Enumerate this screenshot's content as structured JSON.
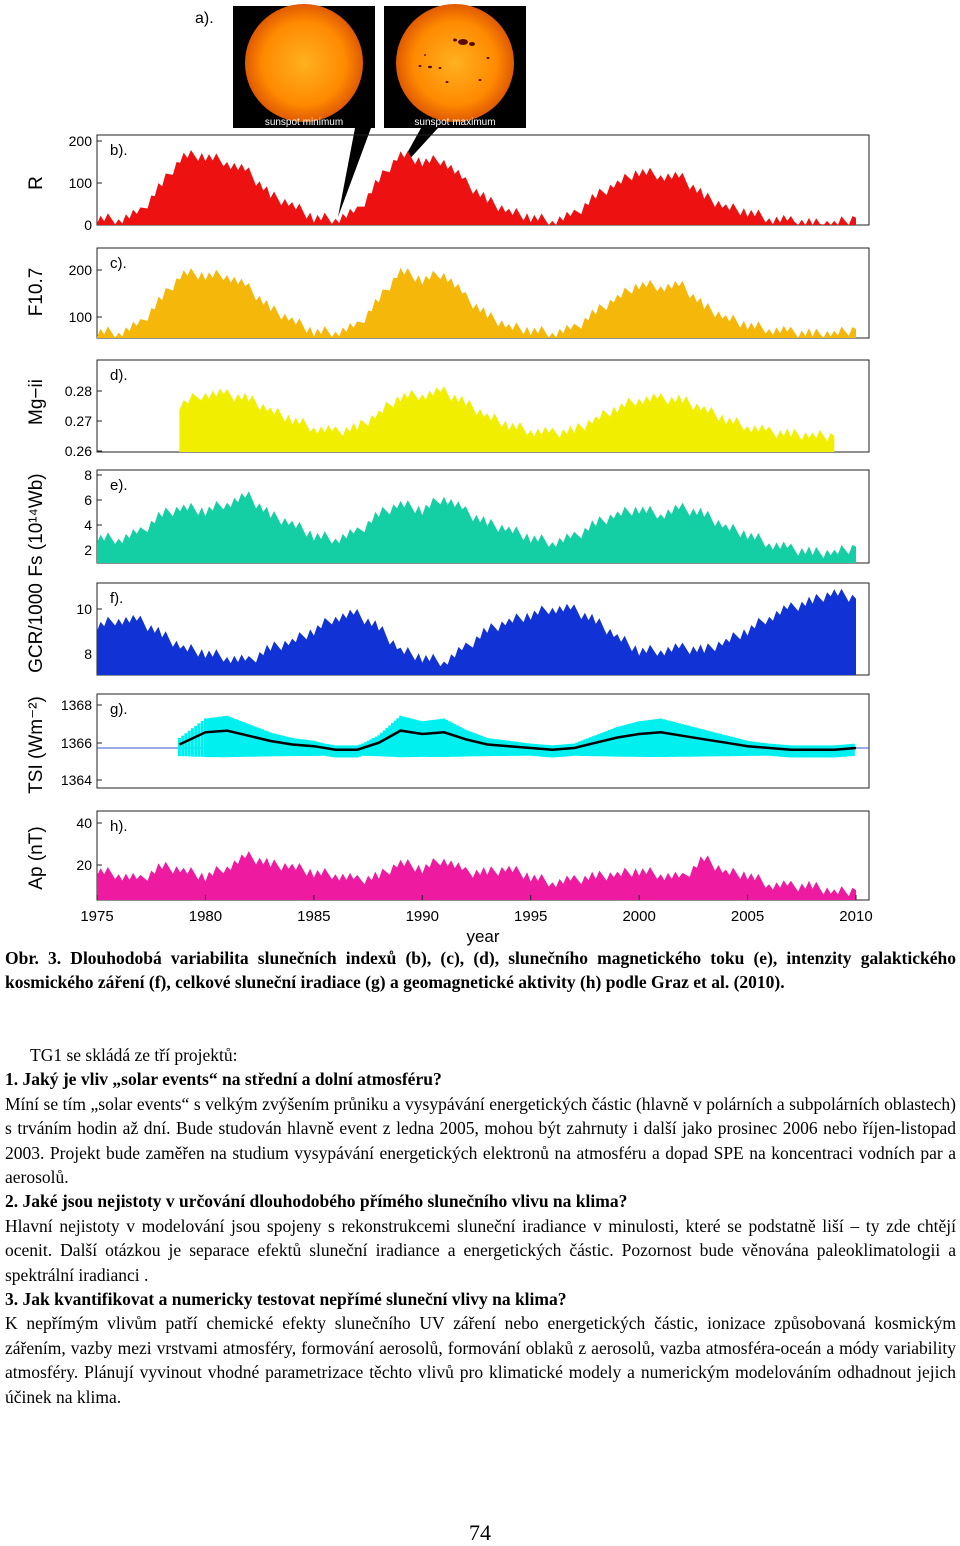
{
  "figure": {
    "panel_tags": [
      "a).",
      "b).",
      "c).",
      "d).",
      "e).",
      "f).",
      "g).",
      "h)."
    ],
    "sun_labels": {
      "minimum": "sunspot minimum",
      "maximum": "sunspot maximum"
    },
    "xlabel": "year",
    "xticks": [
      "1975",
      "1980",
      "1985",
      "1990",
      "1995",
      "2000",
      "2005",
      "2010"
    ],
    "colors": {
      "R": "#ee1111",
      "F10.7": "#f5b80a",
      "Mg-ii": "#f2ee00",
      "Fs": "#14cfa4",
      "GCR": "#1133d5",
      "TSI_daily": "#00f0f0",
      "TSI_smooth": "#000000",
      "Ap": "#ee1aa0"
    }
  },
  "chart_data": [
    {
      "type": "area",
      "panel": "b",
      "ylabel": "R",
      "yticks": [
        "200",
        "100",
        "0"
      ],
      "ylim": [
        0,
        200
      ],
      "x": [
        1975,
        1976,
        1977,
        1978,
        1979,
        1980,
        1981,
        1982,
        1983,
        1984,
        1985,
        1986,
        1987,
        1988,
        1989,
        1990,
        1991,
        1992,
        1993,
        1994,
        1995,
        1996,
        1997,
        1998,
        1999,
        2000,
        2001,
        2002,
        2003,
        2004,
        2005,
        2006,
        2007,
        2008,
        2009,
        2010
      ],
      "values": [
        15,
        13,
        27,
        92,
        155,
        154,
        140,
        116,
        66,
        45,
        17,
        14,
        29,
        100,
        158,
        142,
        145,
        94,
        55,
        30,
        18,
        9,
        22,
        64,
        93,
        120,
        111,
        104,
        64,
        40,
        30,
        15,
        8,
        3,
        3,
        16
      ]
    },
    {
      "type": "area",
      "panel": "c",
      "ylabel": "F10.7",
      "yticks": [
        "200",
        "100"
      ],
      "ylim": [
        60,
        260
      ],
      "x": [
        1975,
        1976,
        1977,
        1978,
        1979,
        1980,
        1981,
        1982,
        1983,
        1984,
        1985,
        1986,
        1987,
        1988,
        1989,
        1990,
        1991,
        1992,
        1993,
        1994,
        1995,
        1996,
        1997,
        1998,
        1999,
        2000,
        2001,
        2002,
        2003,
        2004,
        2005,
        2006,
        2007,
        2008,
        2009,
        2010
      ],
      "values": [
        75,
        72,
        90,
        150,
        205,
        200,
        200,
        170,
        125,
        100,
        75,
        74,
        85,
        145,
        210,
        190,
        205,
        150,
        110,
        85,
        78,
        72,
        80,
        118,
        150,
        180,
        175,
        175,
        130,
        105,
        90,
        80,
        73,
        69,
        70,
        80
      ]
    },
    {
      "type": "area",
      "panel": "d",
      "ylabel": "Mg−ii",
      "yticks": [
        "0.28",
        "0.27",
        "0.26"
      ],
      "ylim": [
        0.258,
        0.29
      ],
      "x": [
        1978.8,
        1980,
        1981,
        1982,
        1983,
        1984,
        1985,
        1986,
        1987,
        1988,
        1989,
        1990,
        1991,
        1992,
        1993,
        1994,
        1995,
        1996,
        1997,
        1998,
        1999,
        2000,
        2001,
        2002,
        2003,
        2004,
        2005,
        2006,
        2007,
        2008,
        2009
      ],
      "values": [
        0.2745,
        0.2785,
        0.278,
        0.2765,
        0.2725,
        0.2695,
        0.2665,
        0.265,
        0.2665,
        0.2715,
        0.2775,
        0.278,
        0.279,
        0.275,
        0.2705,
        0.2675,
        0.2655,
        0.2645,
        0.2655,
        0.2695,
        0.2735,
        0.2765,
        0.2765,
        0.276,
        0.273,
        0.2695,
        0.267,
        0.265,
        0.2642,
        0.2638,
        0.2636
      ]
    },
    {
      "type": "area",
      "panel": "e",
      "ylabel": "Fs (10¹⁴Wb)",
      "yticks": [
        "8",
        "6",
        "4",
        "2"
      ],
      "ylim": [
        1,
        9
      ],
      "x": [
        1975,
        1976,
        1977,
        1978,
        1979,
        1980,
        1981,
        1982,
        1983,
        1984,
        1985,
        1986,
        1987,
        1988,
        1989,
        1990,
        1991,
        1992,
        1993,
        1994,
        1995,
        1996,
        1997,
        1998,
        1999,
        2000,
        2001,
        2002,
        2003,
        2004,
        2005,
        2006,
        2007,
        2008,
        2009,
        2010
      ],
      "values": [
        3.2,
        3.1,
        3.6,
        5.2,
        5.8,
        5.5,
        6.2,
        6.7,
        5.1,
        4.4,
        3.4,
        3.1,
        3.6,
        5.2,
        6.1,
        5.6,
        6.7,
        5.4,
        4.4,
        3.9,
        3.2,
        2.8,
        3.2,
        4.4,
        5.2,
        5.7,
        5.2,
        5.7,
        5.2,
        4.1,
        3.5,
        2.7,
        2.2,
        1.9,
        1.9,
        2.4
      ]
    },
    {
      "type": "area",
      "panel": "f",
      "ylabel": "GCR/1000",
      "yticks": [
        "10",
        "8"
      ],
      "ylim": [
        7.2,
        11.3
      ],
      "x": [
        1975,
        1976,
        1977,
        1978,
        1979,
        1980,
        1981,
        1982,
        1983,
        1984,
        1985,
        1986,
        1987,
        1988,
        1989,
        1990,
        1991,
        1992,
        1993,
        1994,
        1995,
        1996,
        1997,
        1998,
        1999,
        2000,
        2001,
        2002,
        2003,
        2004,
        2005,
        2006,
        2007,
        2008,
        2009,
        2010
      ],
      "values": [
        9.4,
        9.7,
        9.6,
        9.0,
        8.4,
        8.2,
        8.0,
        7.8,
        8.4,
        8.7,
        9.2,
        9.8,
        9.9,
        9.3,
        8.3,
        8.0,
        7.8,
        8.4,
        9.2,
        9.6,
        9.9,
        10.2,
        10.1,
        9.6,
        8.9,
        8.3,
        8.3,
        8.4,
        8.3,
        8.7,
        9.2,
        9.8,
        10.2,
        10.5,
        10.9,
        10.6
      ]
    },
    {
      "type": "line",
      "panel": "g",
      "ylabel": "TSI (Wm⁻²)",
      "yticks": [
        "1368",
        "1366",
        "1364"
      ],
      "ylim": [
        1363.2,
        1368.6
      ],
      "baseline": 1365.5,
      "x": [
        1978.8,
        1980,
        1981,
        1982,
        1983,
        1984,
        1985,
        1986,
        1987,
        1988,
        1989,
        1990,
        1991,
        1992,
        1993,
        1994,
        1995,
        1996,
        1997,
        1998,
        1999,
        2000,
        2001,
        2002,
        2003,
        2004,
        2005,
        2006,
        2007,
        2008,
        2009,
        2010
      ],
      "series": [
        {
          "values": [
            1365.7,
            1366.4,
            1366.5,
            1366.2,
            1365.9,
            1365.7,
            1365.6,
            1365.4,
            1365.4,
            1365.8,
            1366.5,
            1366.3,
            1366.4,
            1366.0,
            1365.7,
            1365.6,
            1365.5,
            1365.4,
            1365.5,
            1365.8,
            1366.1,
            1366.3,
            1366.4,
            1366.2,
            1366.0,
            1365.8,
            1365.6,
            1365.5,
            1365.4,
            1365.4,
            1365.4,
            1365.5
          ]
        }
      ]
    },
    {
      "type": "area",
      "panel": "h",
      "ylabel": "Ap (nT)",
      "yticks": [
        "40",
        "20"
      ],
      "ylim": [
        0,
        45
      ],
      "x": [
        1975,
        1976,
        1977,
        1978,
        1979,
        1980,
        1981,
        1982,
        1983,
        1984,
        1985,
        1986,
        1987,
        1988,
        1989,
        1990,
        1991,
        1992,
        1993,
        1994,
        1995,
        1996,
        1997,
        1998,
        1999,
        2000,
        2001,
        2002,
        2003,
        2004,
        2005,
        2006,
        2007,
        2008,
        2009,
        2010
      ],
      "values": [
        15,
        13,
        10,
        17,
        15,
        12,
        17,
        22,
        18,
        17,
        14,
        13,
        10,
        12,
        19,
        16,
        21,
        14,
        14,
        16,
        12,
        9,
        10,
        12,
        13,
        15,
        13,
        11,
        21,
        14,
        13,
        8,
        7,
        7,
        4,
        5
      ]
    }
  ],
  "caption": "Obr. 3. Dlouhodobá variabilita slunečních indexů (b), (c), (d), slunečního magnetického toku (e), intenzity galaktického kosmického záření (f), celkové sluneční iradiace (g) a geomagnetické aktivity (h) podle Graz et al. (2010).",
  "body": {
    "intro": "TG1 se skládá ze tří projektů:",
    "q1": "1. Jaký je vliv „solar events“ na střední a dolní atmosféru?",
    "p1": "Míní se tím „solar events“ s velkým zvýšením průniku a vysypávání energetických částic (hlavně v polárních a subpolárních oblastech) s trváním hodin až dní. Bude studován hlavně event z ledna 2005, mohou být zahrnuty i další jako prosinec 2006 nebo říjen-listopad 2003. Projekt bude zaměřen na studium vysypávání energetických elektronů na atmosféru a dopad SPE na koncentraci vodních par a aerosolů.",
    "q2": "2. Jaké jsou nejistoty v určování dlouhodobého přímého slunečního vlivu na klima?",
    "p2": "Hlavní nejistoty v modelování jsou spojeny s rekonstrukcemi sluneční iradiance v minulosti, které se podstatně liší – ty zde chtějí ocenit. Další otázkou je separace efektů sluneční iradiance a energetických částic. Pozornost bude věnována paleoklimatologii a spektrální iradianci .",
    "q3": "3. Jak kvantifikovat a numericky testovat nepřímé sluneční vlivy na klima?",
    "p3": "K nepřímým vlivům patří chemické efekty slunečního UV záření nebo energetických částic, ionizace způsobovaná kosmickým zářením, vazby mezi vrstvami atmosféry, formování aerosolů, formování oblaků z aerosolů, vazba atmosféra-oceán a módy variability atmosféry. Plánují vyvinout vhodné parametrizace těchto vlivů pro klimatické modely a numerickým modelováním odhadnout jejich účinek na klima."
  },
  "page_number": "74"
}
